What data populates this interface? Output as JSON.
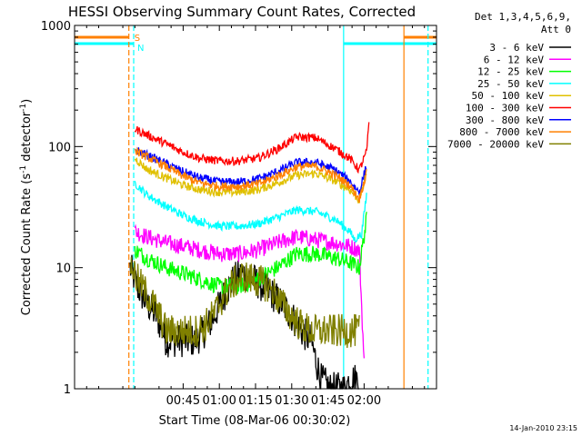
{
  "chart_data": {
    "type": "line",
    "title": "HESSI Observing Summary Count Rates, Corrected",
    "xlabel": "Start Time (08-Mar-06 00:30:02)",
    "ylabel_main": "Corrected Count Rate (s",
    "ylabel_sup1": "-1",
    "ylabel_mid": " detector",
    "ylabel_sup2": "-1",
    "ylabel_end": ")",
    "footer": "14-Jan-2010 23:15",
    "legend_header": [
      "Det 1,3,4,5,6,9,",
      "Att 0"
    ],
    "x_ticks": [
      {
        "t": 45,
        "label": "00:45"
      },
      {
        "t": 60,
        "label": "01:00"
      },
      {
        "t": 75,
        "label": "01:15"
      },
      {
        "t": 90,
        "label": "01:30"
      },
      {
        "t": 105,
        "label": "01:45"
      },
      {
        "t": 120,
        "label": "02:00"
      }
    ],
    "xlim_minutes_after_0030": [
      0,
      150
    ],
    "y_scale": "log",
    "ylim": [
      1,
      1000
    ],
    "y_ticks": [
      {
        "v": 1,
        "label": "1"
      },
      {
        "v": 10,
        "label": "10"
      },
      {
        "v": 100,
        "label": "100"
      },
      {
        "v": 1000,
        "label": "1000"
      }
    ],
    "flag_labels": [
      {
        "text": "S",
        "color": "#ff8000"
      },
      {
        "text": "N",
        "color": "#00ffff"
      }
    ],
    "vlines": [
      {
        "t": 22.5,
        "color": "#ff8000",
        "style": "dashed"
      },
      {
        "t": 24.5,
        "color": "#00ffff",
        "style": "dashed"
      },
      {
        "t": 111.5,
        "color": "#00ffff",
        "style": "solid"
      },
      {
        "t": 136.5,
        "color": "#ff8000",
        "style": "solid"
      },
      {
        "t": 146.5,
        "color": "#00ffff",
        "style": "dashed"
      }
    ],
    "series": [
      {
        "name": "3 - 6 keV",
        "color": "#000000",
        "t": [
          23,
          24,
          26,
          30,
          34,
          38,
          42,
          46,
          50,
          54,
          58,
          62,
          66,
          70,
          74,
          78,
          82,
          86,
          90,
          94,
          98,
          102,
          106,
          110,
          112,
          114,
          116,
          118
        ],
        "values": [
          10,
          9,
          7,
          5,
          4,
          2.5,
          2.5,
          2.5,
          2.5,
          3,
          4,
          6,
          8,
          9,
          8,
          7,
          6,
          5,
          4,
          3,
          2.5,
          1.2,
          1,
          1,
          1,
          1.2,
          1.2,
          1.2
        ]
      },
      {
        "name": "6 - 12 keV",
        "color": "#ff00ff",
        "t": [
          25,
          30,
          38,
          45,
          52,
          60,
          68,
          76,
          84,
          92,
          100,
          108,
          114,
          118,
          120
        ],
        "values": [
          20,
          18,
          16,
          15,
          14,
          13,
          13,
          14,
          16,
          18,
          17,
          16,
          15,
          14,
          1.6
        ]
      },
      {
        "name": "12 - 25 keV",
        "color": "#00ff00",
        "t": [
          25,
          30,
          38,
          45,
          52,
          60,
          68,
          76,
          84,
          92,
          100,
          108,
          114,
          118,
          121
        ],
        "values": [
          14,
          12,
          10,
          9,
          8,
          7,
          7,
          8,
          10,
          13,
          13,
          12,
          11,
          10,
          25
        ]
      },
      {
        "name": "25 - 50 keV",
        "color": "#00ffff",
        "t": [
          25,
          30,
          38,
          45,
          52,
          60,
          68,
          76,
          84,
          92,
          100,
          108,
          114,
          116,
          119,
          121
        ],
        "values": [
          50,
          40,
          32,
          27,
          24,
          22,
          22,
          23,
          26,
          30,
          29,
          25,
          20,
          17,
          19,
          40
        ]
      },
      {
        "name": "50 - 100 keV",
        "color": "#e0c000",
        "t": [
          25,
          30,
          38,
          45,
          52,
          60,
          68,
          76,
          84,
          92,
          100,
          108,
          114,
          118,
          121
        ],
        "values": [
          80,
          65,
          55,
          48,
          44,
          42,
          42,
          44,
          50,
          58,
          60,
          52,
          44,
          36,
          60
        ]
      },
      {
        "name": "100 - 300 keV",
        "color": "#ff0000",
        "t": [
          25,
          30,
          38,
          45,
          52,
          60,
          68,
          76,
          84,
          92,
          100,
          108,
          114,
          118,
          121,
          122
        ],
        "values": [
          140,
          125,
          105,
          90,
          80,
          76,
          76,
          80,
          95,
          120,
          118,
          96,
          80,
          64,
          90,
          150
        ]
      },
      {
        "name": "300 - 800 keV",
        "color": "#0000ff",
        "t": [
          25,
          30,
          38,
          45,
          52,
          60,
          68,
          76,
          84,
          92,
          100,
          108,
          114,
          118,
          121
        ],
        "values": [
          95,
          85,
          72,
          62,
          55,
          51,
          51,
          54,
          62,
          74,
          74,
          64,
          52,
          42,
          70
        ]
      },
      {
        "name": "800 - 7000 keV",
        "color": "#ff8000",
        "t": [
          25,
          30,
          38,
          45,
          52,
          60,
          68,
          76,
          84,
          92,
          100,
          108,
          114,
          118,
          121
        ],
        "values": [
          92,
          82,
          68,
          57,
          50,
          47,
          47,
          49,
          57,
          68,
          69,
          58,
          48,
          37,
          60
        ]
      },
      {
        "name": "7000 - 20000 keV",
        "color": "#808000",
        "t": [
          23,
          24,
          26,
          30,
          34,
          38,
          42,
          46,
          50,
          54,
          58,
          62,
          66,
          70,
          74,
          78,
          82,
          86,
          90,
          94,
          98,
          102,
          106,
          110,
          114,
          118
        ],
        "values": [
          11,
          10,
          8,
          6,
          4.5,
          3,
          3,
          3,
          3,
          3.3,
          4.2,
          6,
          7.5,
          8.5,
          8,
          7.5,
          6.5,
          5,
          4,
          3.3,
          3,
          3,
          3,
          3,
          3,
          3
        ]
      }
    ]
  }
}
